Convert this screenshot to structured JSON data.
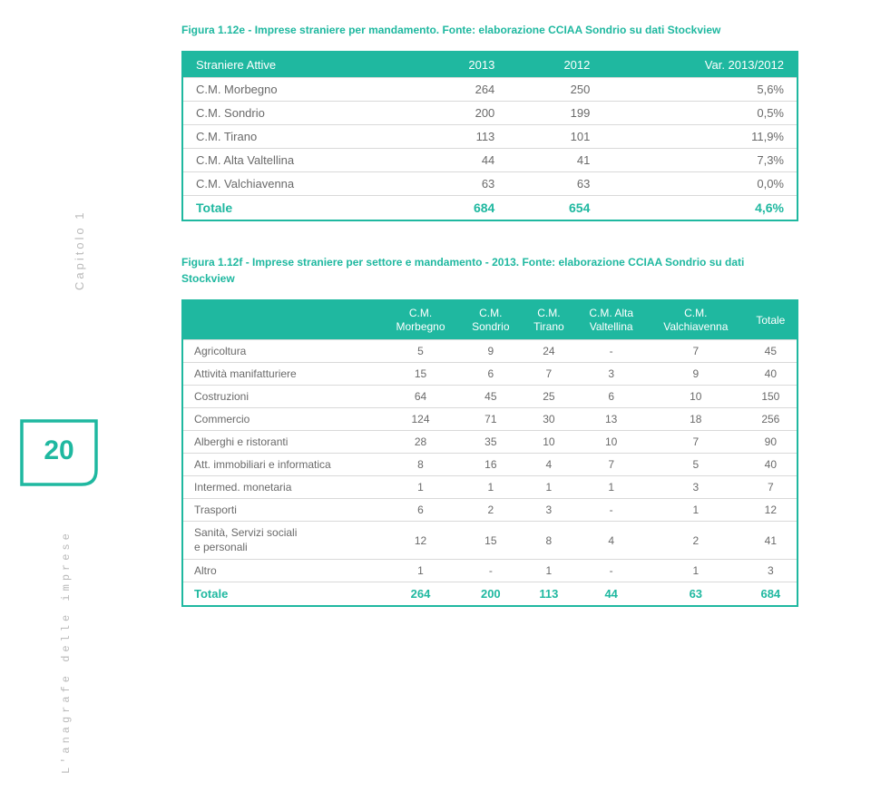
{
  "colors": {
    "accent": "#1fb8a0",
    "grey_text": "#6a6a6a",
    "light_grey": "#b9b9b9",
    "row_border": "#d9d9d9",
    "bg": "#ffffff"
  },
  "caption1": "Figura 1.12e - Imprese straniere per mandamento. Fonte: elaborazione CCIAA Sondrio su dati Stockview",
  "table1": {
    "headers": [
      "Straniere Attive",
      "2013",
      "2012",
      "Var. 2013/2012"
    ],
    "rows": [
      [
        "C.M. Morbegno",
        "264",
        "250",
        "5,6%"
      ],
      [
        "C.M. Sondrio",
        "200",
        "199",
        "0,5%"
      ],
      [
        "C.M. Tirano",
        "113",
        "101",
        "11,9%"
      ],
      [
        "C.M. Alta Valtellina",
        "44",
        "41",
        "7,3%"
      ],
      [
        "C.M. Valchiavenna",
        "63",
        "63",
        "0,0%"
      ]
    ],
    "totale": [
      "Totale",
      "684",
      "654",
      "4,6%"
    ]
  },
  "caption2": "Figura 1.12f - Imprese straniere per settore e mandamento - 2013. Fonte: elaborazione CCIAA Sondrio su dati Stockview",
  "table2": {
    "headers": [
      "",
      "C.M.\nMorbegno",
      "C.M.\nSondrio",
      "C.M.\nTirano",
      "C.M. Alta\nValtellina",
      "C.M.\nValchiavenna",
      "Totale"
    ],
    "rows": [
      [
        "Agricoltura",
        "5",
        "9",
        "24",
        "-",
        "7",
        "45"
      ],
      [
        "Attività manifatturiere",
        "15",
        "6",
        "7",
        "3",
        "9",
        "40"
      ],
      [
        "Costruzioni",
        "64",
        "45",
        "25",
        "6",
        "10",
        "150"
      ],
      [
        "Commercio",
        "124",
        "71",
        "30",
        "13",
        "18",
        "256"
      ],
      [
        "Alberghi e ristoranti",
        "28",
        "35",
        "10",
        "10",
        "7",
        "90"
      ],
      [
        "Att. immobiliari e informatica",
        "8",
        "16",
        "4",
        "7",
        "5",
        "40"
      ],
      [
        "Intermed. monetaria",
        "1",
        "1",
        "1",
        "1",
        "3",
        "7"
      ],
      [
        "Trasporti",
        "6",
        "2",
        "3",
        "-",
        "1",
        "12"
      ],
      [
        "Sanità, Servizi sociali\ne personali",
        "12",
        "15",
        "8",
        "4",
        "2",
        "41"
      ],
      [
        "Altro",
        "1",
        "-",
        "1",
        "-",
        "1",
        "3"
      ]
    ],
    "totale": [
      "Totale",
      "264",
      "200",
      "113",
      "44",
      "63",
      "684"
    ]
  },
  "sidebar": {
    "chapter": "Capitolo 1",
    "page_num": "20",
    "section": "L'anagrafe delle imprese"
  }
}
